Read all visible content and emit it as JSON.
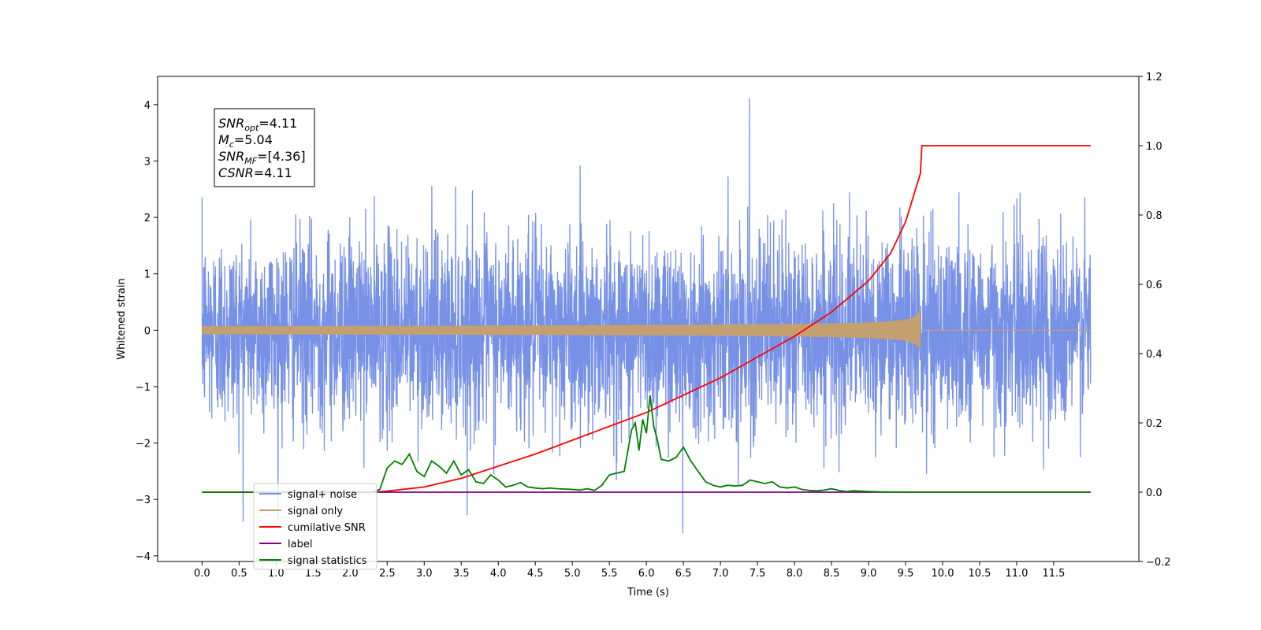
{
  "chart_data": {
    "type": "line",
    "title": "",
    "xlabel": "Time (s)",
    "ylabel": "Whitened strain",
    "xlim": [
      -0.6,
      12.65
    ],
    "ylim": [
      -4.1,
      4.5
    ],
    "y2lim": [
      -0.2,
      1.2
    ],
    "x_ticks": [
      "0.0",
      "0.5",
      "1.0",
      "1.5",
      "2.0",
      "2.5",
      "3.0",
      "3.5",
      "4.0",
      "4.5",
      "5.0",
      "5.5",
      "6.0",
      "6.5",
      "7.0",
      "7.5",
      "8.0",
      "8.5",
      "9.0",
      "9.5",
      "10.0",
      "10.5",
      "11.0",
      "11.5"
    ],
    "y_ticks": [
      "4",
      "3",
      "2",
      "1",
      "0",
      "−1",
      "−2",
      "−3",
      "−4"
    ],
    "y2_ticks": [
      "1.2",
      "1.0",
      "0.8",
      "0.6",
      "0.4",
      "0.2",
      "0.0",
      "−0.2"
    ],
    "grid": false,
    "legend_position": "lower-left",
    "annotation": {
      "lines": [
        {
          "label": "SNR",
          "sub": "opt",
          "value": "=4.11"
        },
        {
          "label": "M",
          "sub": "c",
          "value": "=5.04"
        },
        {
          "label": "SNR",
          "sub": "MF",
          "value": "=[4.36]"
        },
        {
          "label": "CSNR",
          "sub": "",
          "value": "=4.11"
        }
      ]
    },
    "series": [
      {
        "name": "signal+ noise",
        "axis": "left",
        "color": "#7791e6",
        "description_stats": {
          "x_start": 0.0,
          "x_end": 12.0,
          "std": 0.85,
          "max": 4.11,
          "min": -3.6
        }
      },
      {
        "name": "signal only",
        "axis": "left",
        "color": "#c4a070",
        "chirp": {
          "x_start": 0.0,
          "x_merge": 9.7,
          "x_end": 12.0,
          "peak_amplitude": 0.4
        }
      },
      {
        "name": "cumilative SNR",
        "axis": "right",
        "color": "#ff0000",
        "x": [
          0.0,
          2.3,
          2.5,
          3.0,
          3.5,
          4.0,
          4.5,
          5.0,
          5.5,
          6.0,
          6.5,
          7.0,
          7.5,
          8.0,
          8.5,
          9.0,
          9.3,
          9.5,
          9.6,
          9.7,
          9.72,
          10.0,
          11.0,
          12.0
        ],
        "values": [
          0.0,
          0.0,
          0.003,
          0.015,
          0.04,
          0.075,
          0.11,
          0.15,
          0.19,
          0.23,
          0.28,
          0.33,
          0.39,
          0.45,
          0.52,
          0.61,
          0.69,
          0.78,
          0.85,
          0.92,
          1.0,
          1.0,
          1.0,
          1.0
        ]
      },
      {
        "name": "label",
        "axis": "right",
        "color": "#800080",
        "x": [
          0.0,
          12.0
        ],
        "values": [
          0.0,
          0.0
        ]
      },
      {
        "name": "signal statistics",
        "axis": "right",
        "color": "#008000",
        "x": [
          0.0,
          2.3,
          2.4,
          2.5,
          2.6,
          2.7,
          2.8,
          2.9,
          3.0,
          3.1,
          3.2,
          3.3,
          3.4,
          3.5,
          3.6,
          3.7,
          3.8,
          3.9,
          4.0,
          4.1,
          4.2,
          4.3,
          4.4,
          4.5,
          4.6,
          4.7,
          4.8,
          4.9,
          5.0,
          5.1,
          5.2,
          5.3,
          5.4,
          5.5,
          5.6,
          5.7,
          5.8,
          5.85,
          5.9,
          5.95,
          6.0,
          6.05,
          6.1,
          6.15,
          6.2,
          6.3,
          6.4,
          6.5,
          6.6,
          6.7,
          6.8,
          6.9,
          7.0,
          7.1,
          7.2,
          7.3,
          7.4,
          7.5,
          7.6,
          7.7,
          7.8,
          7.9,
          8.0,
          8.1,
          8.2,
          8.3,
          8.4,
          8.5,
          8.6,
          8.7,
          8.8,
          8.9,
          9.0,
          9.2,
          9.5,
          10.0,
          11.0,
          12.0
        ],
        "values": [
          0.0,
          0.0,
          0.008,
          0.07,
          0.09,
          0.08,
          0.11,
          0.06,
          0.045,
          0.09,
          0.075,
          0.055,
          0.09,
          0.05,
          0.065,
          0.03,
          0.025,
          0.05,
          0.035,
          0.015,
          0.02,
          0.028,
          0.015,
          0.012,
          0.01,
          0.012,
          0.01,
          0.009,
          0.008,
          0.006,
          0.01,
          0.005,
          0.02,
          0.05,
          0.055,
          0.06,
          0.18,
          0.2,
          0.12,
          0.21,
          0.17,
          0.28,
          0.19,
          0.15,
          0.095,
          0.09,
          0.1,
          0.13,
          0.09,
          0.06,
          0.03,
          0.02,
          0.015,
          0.02,
          0.018,
          0.02,
          0.035,
          0.03,
          0.025,
          0.03,
          0.015,
          0.012,
          0.015,
          0.008,
          0.005,
          0.004,
          0.006,
          0.01,
          0.005,
          0.002,
          0.004,
          0.003,
          0.002,
          0.001,
          0.0,
          0.0,
          0.0,
          0.0
        ]
      }
    ]
  }
}
